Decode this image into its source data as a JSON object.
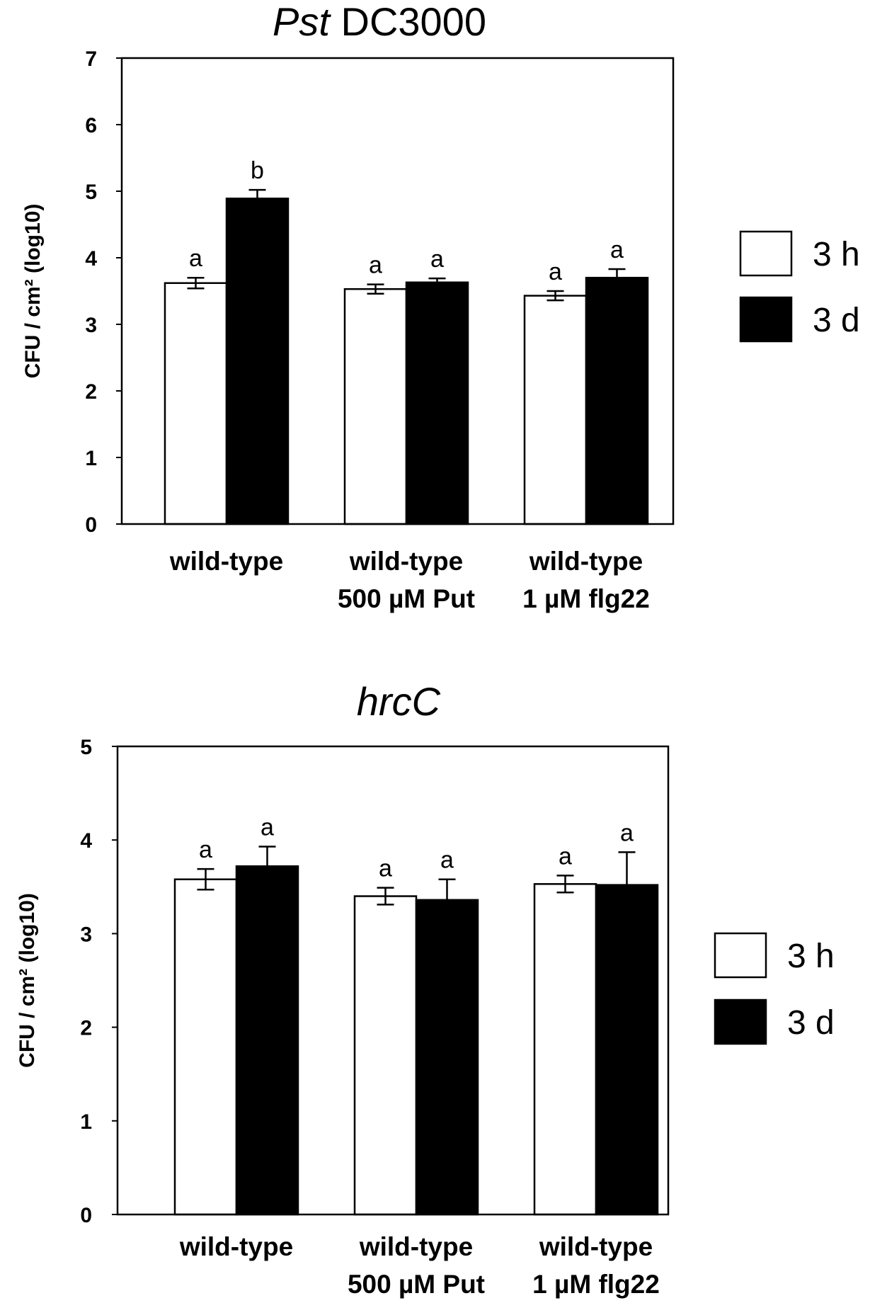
{
  "chart_data": [
    {
      "type": "bar",
      "title_italic": "Pst",
      "title_rest": " DC3000",
      "ylabel": "CFU / cm² (log10)",
      "ylim": [
        0,
        7
      ],
      "yticks": [
        "0",
        "1",
        "2",
        "3",
        "4",
        "5",
        "6",
        "7"
      ],
      "categories": [
        [
          "wild-type"
        ],
        [
          "wild-type",
          "500 µM Put"
        ],
        [
          "wild-type",
          "1 µM flg22"
        ]
      ],
      "series": [
        {
          "name": "3 h",
          "color": "#ffffff",
          "values": [
            3.62,
            3.53,
            3.43
          ],
          "errors": [
            0.08,
            0.07,
            0.07
          ],
          "labels": [
            "a",
            "a",
            "a"
          ]
        },
        {
          "name": "3 d",
          "color": "#000000",
          "values": [
            4.89,
            3.63,
            3.7
          ],
          "errors": [
            0.13,
            0.06,
            0.13
          ],
          "labels": [
            "b",
            "a",
            "a"
          ]
        }
      ],
      "legend_position": "right"
    },
    {
      "type": "bar",
      "title_italic": "hrcC",
      "title_rest": "",
      "ylabel": "CFU / cm² (log10)",
      "ylim": [
        0,
        5
      ],
      "yticks": [
        "0",
        "1",
        "2",
        "3",
        "4",
        "5"
      ],
      "categories": [
        [
          "wild-type"
        ],
        [
          "wild-type",
          "500 µM Put"
        ],
        [
          "wild-type",
          "1 µM flg22"
        ]
      ],
      "series": [
        {
          "name": "3 h",
          "color": "#ffffff",
          "values": [
            3.58,
            3.4,
            3.53
          ],
          "errors": [
            0.11,
            0.09,
            0.09
          ],
          "labels": [
            "a",
            "a",
            "a"
          ]
        },
        {
          "name": "3 d",
          "color": "#000000",
          "values": [
            3.72,
            3.36,
            3.52
          ],
          "errors": [
            0.21,
            0.22,
            0.35
          ],
          "labels": [
            "a",
            "a",
            "a"
          ]
        }
      ],
      "legend_position": "right"
    }
  ]
}
